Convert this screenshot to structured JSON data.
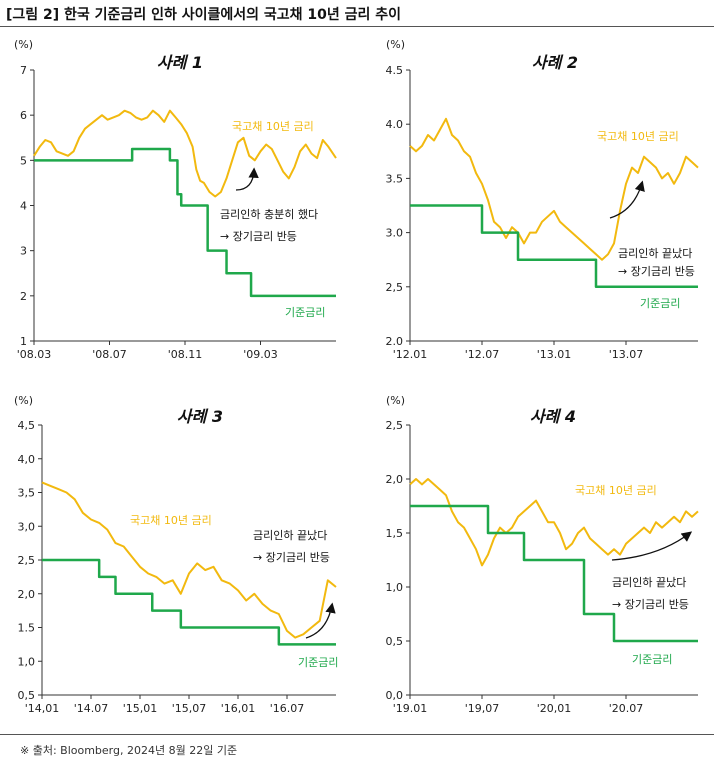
{
  "page": {
    "title": "[그림 2] 한국 기준금리 인하 사이클에서의 국고채 10년 금리 추이",
    "footnote": "※ 출처: Bloomberg, 2024년 8월 22일 기준"
  },
  "colors": {
    "bond": "#F2B90F",
    "base": "#1FA84B",
    "axis": "#333333",
    "arrow": "#111111"
  },
  "chart_data": [
    {
      "type": "line",
      "title": "사례 1",
      "unit": "(%)",
      "ylim": [
        1,
        7
      ],
      "yticks": [
        "1",
        "2",
        "3",
        "4",
        "5",
        "6",
        "7"
      ],
      "xticks": [
        "'08.03",
        "'08.07",
        "'08.11",
        "'09.03"
      ],
      "xlim": [
        0,
        16.0
      ],
      "series": [
        {
          "name": "국고채 10년 금리",
          "x": [
            0,
            0.3,
            0.6,
            0.9,
            1.2,
            1.5,
            1.8,
            2.1,
            2.4,
            2.7,
            3.0,
            3.3,
            3.6,
            3.9,
            4.2,
            4.5,
            4.8,
            5.1,
            5.4,
            5.7,
            6.0,
            6.3,
            6.6,
            6.9,
            7.2,
            7.5,
            7.8,
            8.1,
            8.4,
            8.6,
            8.8,
            9.0,
            9.3,
            9.6,
            9.9,
            10.2,
            10.5,
            10.8,
            11.1,
            11.4,
            11.7,
            12.0,
            12.3,
            12.6,
            12.9,
            13.2,
            13.5,
            13.8,
            14.1,
            14.4,
            14.7,
            15.0,
            15.3,
            15.6,
            16.0
          ],
          "values": [
            5.1,
            5.3,
            5.45,
            5.4,
            5.2,
            5.15,
            5.1,
            5.2,
            5.5,
            5.7,
            5.8,
            5.9,
            6.0,
            5.9,
            5.95,
            6.0,
            6.1,
            6.05,
            5.95,
            5.9,
            5.95,
            6.1,
            6.0,
            5.85,
            6.1,
            5.95,
            5.8,
            5.6,
            5.3,
            4.8,
            4.55,
            4.5,
            4.3,
            4.2,
            4.3,
            4.6,
            5.0,
            5.4,
            5.5,
            5.1,
            5.0,
            5.2,
            5.35,
            5.25,
            5.0,
            4.75,
            4.6,
            4.85,
            5.2,
            5.35,
            5.15,
            5.05,
            5.45,
            5.3,
            5.05
          ]
        },
        {
          "name": "기준금리",
          "step": true,
          "x": [
            0,
            5.2,
            7.2,
            7.6,
            7.8,
            9.2,
            10.2,
            11.5,
            16.0
          ],
          "values": [
            5.0,
            5.25,
            5.0,
            4.25,
            4.0,
            3.0,
            2.5,
            2.0,
            2.0
          ]
        }
      ],
      "annotations": [
        {
          "text": "국고채 10년 금리"
        },
        {
          "text": "기준금리"
        },
        {
          "text": "금리인하 충분히 했다"
        },
        {
          "text": "→ 장기금리 반등"
        }
      ]
    },
    {
      "type": "line",
      "title": "사례 2",
      "unit": "(%)",
      "ylim": [
        2.0,
        4.5
      ],
      "yticks": [
        "2.0",
        "2,5",
        "3.0",
        "3.5",
        "4.0",
        "4.5"
      ],
      "xticks": [
        "'12.01",
        "'12.07",
        "'13.01",
        "'13.07"
      ],
      "xlim": [
        0,
        24.0
      ],
      "series": [
        {
          "name": "국고채 10년 금리",
          "x": [
            0,
            0.5,
            1,
            1.5,
            2,
            2.5,
            3,
            3.5,
            4,
            4.5,
            5,
            5.5,
            6,
            6.5,
            7,
            7.5,
            8,
            8.5,
            9,
            9.5,
            10,
            10.5,
            11,
            11.5,
            12,
            12.5,
            13,
            13.5,
            14,
            14.5,
            15,
            15.5,
            16,
            16.5,
            17,
            17.5,
            18,
            18.5,
            19,
            19.5,
            20,
            20.5,
            21,
            21.5,
            22,
            22.5,
            23,
            23.5,
            24
          ],
          "values": [
            3.8,
            3.75,
            3.8,
            3.9,
            3.85,
            3.95,
            4.05,
            3.9,
            3.85,
            3.75,
            3.7,
            3.55,
            3.45,
            3.3,
            3.1,
            3.05,
            2.95,
            3.05,
            3.0,
            2.9,
            3.0,
            3.0,
            3.1,
            3.15,
            3.2,
            3.1,
            3.05,
            3.0,
            2.95,
            2.9,
            2.85,
            2.8,
            2.75,
            2.8,
            2.9,
            3.2,
            3.45,
            3.6,
            3.55,
            3.7,
            3.65,
            3.6,
            3.5,
            3.55,
            3.45,
            3.55,
            3.7,
            3.65,
            3.6
          ]
        },
        {
          "name": "기준금리",
          "step": true,
          "x": [
            0,
            6.0,
            9.0,
            15.5,
            24.0
          ],
          "values": [
            3.25,
            3.0,
            2.75,
            2.5,
            2.5
          ]
        }
      ],
      "annotations": [
        {
          "text": "국고채 10년 금리"
        },
        {
          "text": "기준금리"
        },
        {
          "text": "금리인하 끝났다"
        },
        {
          "text": "→ 장기금리 반등"
        }
      ]
    },
    {
      "type": "line",
      "title": "사례 3",
      "unit": "(%)",
      "ylim": [
        0.5,
        4.5
      ],
      "yticks": [
        "0,5",
        "1,0",
        "1.5",
        "2,0",
        "2,5",
        "3,0",
        "3,5",
        "4,0",
        "4,5"
      ],
      "xticks": [
        "'14,01",
        "'14.07",
        "'15,01",
        "'15,07",
        "'16,01",
        "'16.07"
      ],
      "xlim": [
        0,
        36.0
      ],
      "series": [
        {
          "name": "국고채 10년 금리",
          "x": [
            0,
            1,
            2,
            3,
            4,
            5,
            6,
            7,
            8,
            9,
            10,
            11,
            12,
            13,
            14,
            15,
            16,
            17,
            18,
            19,
            20,
            21,
            22,
            23,
            24,
            25,
            26,
            27,
            28,
            29,
            30,
            31,
            32,
            33,
            34,
            35,
            36
          ],
          "values": [
            3.65,
            3.6,
            3.55,
            3.5,
            3.4,
            3.2,
            3.1,
            3.05,
            2.95,
            2.75,
            2.7,
            2.55,
            2.4,
            2.3,
            2.25,
            2.15,
            2.2,
            2.0,
            2.3,
            2.45,
            2.35,
            2.4,
            2.2,
            2.15,
            2.05,
            1.9,
            2.0,
            1.85,
            1.75,
            1.7,
            1.45,
            1.35,
            1.4,
            1.5,
            1.6,
            2.2,
            2.1
          ]
        },
        {
          "name": "기준금리",
          "step": true,
          "x": [
            0,
            7.0,
            9.0,
            13.5,
            17.0,
            29.0,
            36.0
          ],
          "values": [
            2.5,
            2.25,
            2.0,
            1.75,
            1.5,
            1.25,
            1.25
          ]
        }
      ],
      "annotations": [
        {
          "text": "국고채 10년 금리"
        },
        {
          "text": "기준금리"
        },
        {
          "text": "금리인하 끝났다"
        },
        {
          "text": "→ 장기금리 반등"
        }
      ]
    },
    {
      "type": "line",
      "title": "사례 4",
      "unit": "(%)",
      "ylim": [
        0.0,
        2.5
      ],
      "yticks": [
        "0,0",
        "0,5",
        "1,0",
        "1,5",
        "2,0",
        "2,5"
      ],
      "xticks": [
        "'19.01",
        "'19,07",
        "'20,01",
        "'20.07"
      ],
      "xlim": [
        0,
        24.0
      ],
      "series": [
        {
          "name": "국고채 10년 금리",
          "x": [
            0,
            0.5,
            1,
            1.5,
            2,
            2.5,
            3,
            3.5,
            4,
            4.5,
            5,
            5.5,
            6,
            6.5,
            7,
            7.5,
            8,
            8.5,
            9,
            9.5,
            10,
            10.5,
            11,
            11.5,
            12,
            12.5,
            13,
            13.5,
            14,
            14.5,
            15,
            15.5,
            16,
            16.5,
            17,
            17.5,
            18,
            18.5,
            19,
            19.5,
            20,
            20.5,
            21,
            21.5,
            22,
            22.5,
            23,
            23.5,
            24
          ],
          "values": [
            1.95,
            2.0,
            1.95,
            2.0,
            1.95,
            1.9,
            1.85,
            1.7,
            1.6,
            1.55,
            1.45,
            1.35,
            1.2,
            1.3,
            1.45,
            1.55,
            1.5,
            1.55,
            1.65,
            1.7,
            1.75,
            1.8,
            1.7,
            1.6,
            1.6,
            1.5,
            1.35,
            1.4,
            1.5,
            1.55,
            1.45,
            1.4,
            1.35,
            1.3,
            1.35,
            1.3,
            1.4,
            1.45,
            1.5,
            1.55,
            1.5,
            1.6,
            1.55,
            1.6,
            1.65,
            1.6,
            1.7,
            1.65,
            1.7
          ]
        },
        {
          "name": "기준금리",
          "step": true,
          "x": [
            0,
            6.5,
            9.5,
            14.5,
            17.0,
            24.0
          ],
          "values": [
            1.75,
            1.5,
            1.25,
            0.75,
            0.5,
            0.5
          ]
        }
      ],
      "annotations": [
        {
          "text": "국고채 10년 금리"
        },
        {
          "text": "기준금리"
        },
        {
          "text": "금리인하 끝났다"
        },
        {
          "text": "→ 장기금리 반등"
        }
      ]
    }
  ]
}
